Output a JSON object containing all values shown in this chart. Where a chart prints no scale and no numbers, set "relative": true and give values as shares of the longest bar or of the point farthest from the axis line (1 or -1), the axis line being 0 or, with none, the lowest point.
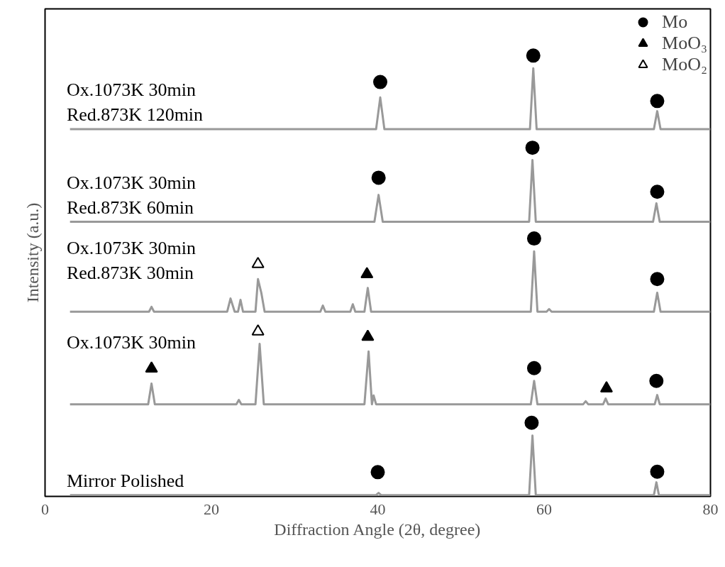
{
  "chart_data": {
    "type": "line",
    "xlabel": "Diffraction Angle (2θ, degree)",
    "ylabel": "Intensity (a.u.)",
    "relative": true,
    "xlim": [
      0,
      80
    ],
    "xticks": [
      0,
      20,
      40,
      60,
      80
    ],
    "grid": false,
    "legend": "top right",
    "tick_labels": "x",
    "line_style": "solid",
    "annotations": [
      {
        "text": "Ox.1073K 30min\nRed.873K 120min",
        "y": 0.833
      },
      {
        "text": "Ox.1073K 30min\nRed.873K 60min",
        "y": 0.623
      },
      {
        "text": "Ox.1073K 30min\nRed.873K 30min",
        "y": 0.419
      },
      {
        "text": "Ox.1073K 30min",
        "y": 0.209
      },
      {
        "text": "Mirror Polished",
        "y": 0.003
      }
    ],
    "series": [
      {
        "color": "#999999",
        "x": [
          3,
          39.8,
          40.3,
          40.8,
          58.3,
          58.7,
          59.1,
          73.2,
          73.6,
          74.0,
          80
        ],
        "values": [
          0.833,
          0.833,
          0.905,
          0.833,
          0.833,
          0.971,
          0.833,
          0.833,
          0.874,
          0.833,
          0.833
        ]
      },
      {
        "color": "#999999",
        "x": [
          3,
          39.6,
          40.1,
          40.6,
          58.2,
          58.6,
          59.0,
          73.1,
          73.5,
          73.9,
          80
        ],
        "values": [
          0.623,
          0.623,
          0.684,
          0.623,
          0.623,
          0.763,
          0.623,
          0.623,
          0.665,
          0.623,
          0.623
        ]
      },
      {
        "color": "#999999",
        "x": [
          3,
          12.5,
          12.8,
          13.1,
          21.9,
          22.3,
          22.8,
          23.2,
          23.5,
          23.8,
          25.3,
          25.6,
          26.0,
          26.4,
          33.1,
          33.4,
          33.7,
          36.7,
          37.0,
          37.3,
          38.4,
          38.8,
          39.2,
          58.4,
          58.8,
          59.2,
          60.3,
          60.6,
          60.9,
          73.2,
          73.6,
          74.0,
          80
        ],
        "values": [
          0.419,
          0.419,
          0.43,
          0.419,
          0.419,
          0.449,
          0.419,
          0.419,
          0.446,
          0.419,
          0.419,
          0.493,
          0.462,
          0.419,
          0.419,
          0.433,
          0.419,
          0.419,
          0.436,
          0.419,
          0.419,
          0.473,
          0.419,
          0.419,
          0.556,
          0.419,
          0.419,
          0.425,
          0.419,
          0.419,
          0.462,
          0.419,
          0.419
        ]
      },
      {
        "color": "#999999",
        "x": [
          3,
          12.4,
          12.8,
          13.2,
          23.0,
          23.3,
          23.6,
          25.3,
          25.8,
          26.3,
          38.4,
          38.9,
          39.3,
          39.5,
          39.8,
          58.4,
          58.8,
          59.2,
          64.7,
          65.0,
          65.3,
          67.1,
          67.4,
          67.7,
          73.3,
          73.6,
          73.9,
          80
        ],
        "values": [
          0.209,
          0.209,
          0.256,
          0.209,
          0.209,
          0.219,
          0.209,
          0.209,
          0.346,
          0.209,
          0.209,
          0.329,
          0.209,
          0.229,
          0.209,
          0.209,
          0.262,
          0.209,
          0.209,
          0.216,
          0.209,
          0.209,
          0.222,
          0.209,
          0.209,
          0.23,
          0.209,
          0.209
        ]
      },
      {
        "color": "#999999",
        "x": [
          3,
          39.8,
          40.1,
          40.4,
          58.2,
          58.6,
          59.0,
          73.2,
          73.5,
          73.8,
          80
        ],
        "values": [
          0.003,
          0.003,
          0.008,
          0.003,
          0.003,
          0.138,
          0.003,
          0.003,
          0.032,
          0.003,
          0.003
        ]
      },
      {
        "name": "Mo",
        "type": "scatter",
        "marker": "circle",
        "color": "#000000",
        "x": [
          40.3,
          58.7,
          73.6,
          40.1,
          58.6,
          73.6,
          58.8,
          73.6,
          58.8,
          73.5,
          40.0,
          58.5,
          73.6
        ],
        "values": [
          0.94,
          1.0,
          0.897,
          0.723,
          0.791,
          0.691,
          0.585,
          0.493,
          0.291,
          0.262,
          0.055,
          0.167,
          0.056
        ]
      },
      {
        "name": "MoO₃",
        "type": "scatter",
        "marker": "triangle",
        "color": "#000000",
        "x": [
          38.7,
          12.8,
          38.8,
          67.5
        ],
        "values": [
          0.504,
          0.29,
          0.362,
          0.245
        ]
      },
      {
        "name": "MoO₂",
        "type": "scatter",
        "marker": "triangle",
        "color": "#ffffff",
        "x": [
          25.6,
          25.6
        ],
        "values": [
          0.527,
          0.374
        ]
      }
    ]
  }
}
